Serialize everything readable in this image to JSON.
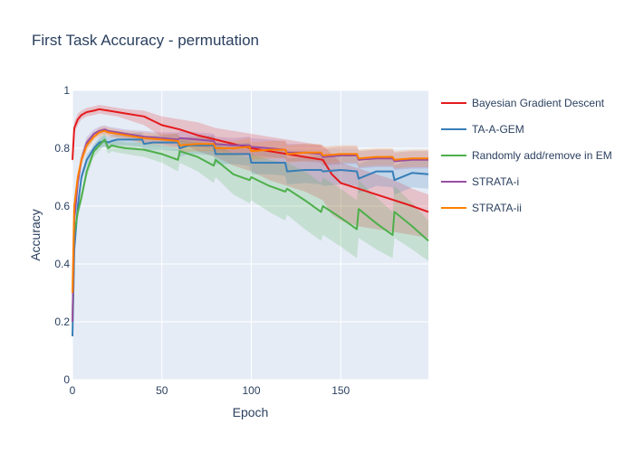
{
  "chart_data": {
    "type": "line",
    "title": "First Task Accuracy - permutation",
    "xlabel": "Epoch",
    "ylabel": "Accuracy",
    "xlim": [
      0,
      199
    ],
    "ylim": [
      0,
      1
    ],
    "x_ticks": [
      0,
      50,
      100,
      150
    ],
    "y_ticks": [
      0,
      0.2,
      0.4,
      0.6,
      0.8,
      1
    ],
    "y_tick_labels": [
      "0",
      "0.2",
      "0.4",
      "0.6",
      "0.8",
      "1"
    ],
    "grid": true,
    "legend_position": "right",
    "background_color": "#e5ecf6",
    "series": [
      {
        "name": "Bayesian Gradient Descent",
        "color": "#e41a1c",
        "x": [
          0,
          1,
          3,
          5,
          8,
          12,
          15,
          20,
          25,
          30,
          40,
          45,
          50,
          60,
          70,
          80,
          90,
          100,
          110,
          120,
          130,
          140,
          145,
          150,
          160,
          170,
          180,
          190,
          199
        ],
        "y": [
          0.76,
          0.87,
          0.9,
          0.915,
          0.925,
          0.93,
          0.935,
          0.93,
          0.925,
          0.92,
          0.91,
          0.895,
          0.88,
          0.865,
          0.845,
          0.83,
          0.815,
          0.8,
          0.79,
          0.78,
          0.77,
          0.76,
          0.71,
          0.68,
          0.66,
          0.64,
          0.62,
          0.6,
          0.58
        ],
        "lower": [
          0.74,
          0.85,
          0.88,
          0.9,
          0.91,
          0.915,
          0.92,
          0.915,
          0.91,
          0.9,
          0.88,
          0.86,
          0.84,
          0.82,
          0.79,
          0.77,
          0.74,
          0.72,
          0.69,
          0.67,
          0.65,
          0.62,
          0.57,
          0.55,
          0.53,
          0.52,
          0.51,
          0.5,
          0.49
        ],
        "upper": [
          0.78,
          0.89,
          0.92,
          0.93,
          0.94,
          0.945,
          0.95,
          0.945,
          0.94,
          0.935,
          0.93,
          0.92,
          0.91,
          0.9,
          0.89,
          0.87,
          0.86,
          0.85,
          0.84,
          0.83,
          0.82,
          0.81,
          0.78,
          0.75,
          0.73,
          0.71,
          0.69,
          0.66,
          0.64
        ]
      },
      {
        "name": "TA-A-GEM",
        "color": "#377eb8",
        "x": [
          0,
          1,
          3,
          5,
          8,
          12,
          15,
          18,
          20,
          22,
          25,
          30,
          39,
          40,
          45,
          50,
          59,
          60,
          65,
          70,
          79,
          80,
          90,
          99,
          100,
          110,
          119,
          120,
          130,
          139,
          140,
          150,
          159,
          160,
          170,
          179,
          180,
          190,
          199
        ],
        "y": [
          0.15,
          0.45,
          0.6,
          0.7,
          0.76,
          0.8,
          0.82,
          0.825,
          0.82,
          0.825,
          0.83,
          0.83,
          0.83,
          0.815,
          0.82,
          0.82,
          0.82,
          0.8,
          0.81,
          0.81,
          0.81,
          0.78,
          0.78,
          0.78,
          0.75,
          0.75,
          0.75,
          0.72,
          0.725,
          0.725,
          0.72,
          0.725,
          0.72,
          0.695,
          0.72,
          0.72,
          0.69,
          0.715,
          0.71
        ],
        "lower": [
          0.13,
          0.43,
          0.58,
          0.68,
          0.74,
          0.785,
          0.8,
          0.805,
          0.8,
          0.805,
          0.81,
          0.81,
          0.805,
          0.79,
          0.795,
          0.795,
          0.79,
          0.77,
          0.78,
          0.78,
          0.775,
          0.745,
          0.745,
          0.74,
          0.71,
          0.71,
          0.705,
          0.675,
          0.68,
          0.675,
          0.67,
          0.675,
          0.67,
          0.645,
          0.67,
          0.665,
          0.64,
          0.665,
          0.66
        ],
        "upper": [
          0.17,
          0.47,
          0.62,
          0.72,
          0.78,
          0.815,
          0.84,
          0.845,
          0.84,
          0.845,
          0.85,
          0.85,
          0.855,
          0.84,
          0.845,
          0.845,
          0.85,
          0.83,
          0.84,
          0.84,
          0.845,
          0.815,
          0.815,
          0.82,
          0.79,
          0.79,
          0.795,
          0.765,
          0.77,
          0.775,
          0.77,
          0.775,
          0.77,
          0.745,
          0.77,
          0.775,
          0.74,
          0.765,
          0.76
        ]
      },
      {
        "name": "Randomly add/remove in EM",
        "color": "#4daf4a",
        "x": [
          0,
          1,
          3,
          5,
          8,
          12,
          15,
          18,
          20,
          22,
          25,
          30,
          40,
          50,
          59,
          60,
          70,
          79,
          80,
          90,
          99,
          100,
          110,
          119,
          120,
          130,
          139,
          140,
          150,
          159,
          160,
          170,
          179,
          180,
          190,
          199
        ],
        "y": [
          0.2,
          0.5,
          0.58,
          0.63,
          0.72,
          0.79,
          0.81,
          0.83,
          0.8,
          0.81,
          0.805,
          0.8,
          0.795,
          0.78,
          0.76,
          0.79,
          0.77,
          0.74,
          0.76,
          0.71,
          0.69,
          0.7,
          0.67,
          0.65,
          0.66,
          0.62,
          0.58,
          0.6,
          0.56,
          0.52,
          0.59,
          0.54,
          0.5,
          0.58,
          0.53,
          0.48
        ],
        "lower": [
          0.18,
          0.48,
          0.56,
          0.61,
          0.7,
          0.77,
          0.79,
          0.81,
          0.78,
          0.79,
          0.785,
          0.78,
          0.77,
          0.75,
          0.72,
          0.75,
          0.72,
          0.68,
          0.7,
          0.64,
          0.61,
          0.62,
          0.58,
          0.55,
          0.57,
          0.52,
          0.48,
          0.5,
          0.46,
          0.42,
          0.49,
          0.45,
          0.42,
          0.49,
          0.45,
          0.41
        ],
        "upper": [
          0.22,
          0.52,
          0.6,
          0.65,
          0.74,
          0.81,
          0.83,
          0.85,
          0.82,
          0.83,
          0.825,
          0.82,
          0.82,
          0.81,
          0.8,
          0.83,
          0.82,
          0.8,
          0.82,
          0.78,
          0.77,
          0.78,
          0.76,
          0.75,
          0.75,
          0.72,
          0.68,
          0.7,
          0.66,
          0.62,
          0.69,
          0.63,
          0.58,
          0.67,
          0.61,
          0.55
        ]
      },
      {
        "name": "STRATA-i",
        "color": "#984ea3",
        "x": [
          0,
          1,
          3,
          5,
          8,
          12,
          15,
          18,
          20,
          25,
          30,
          40,
          50,
          59,
          60,
          70,
          79,
          80,
          90,
          99,
          100,
          110,
          119,
          120,
          130,
          139,
          140,
          150,
          159,
          160,
          170,
          179,
          180,
          190,
          199
        ],
        "y": [
          0.2,
          0.55,
          0.68,
          0.76,
          0.82,
          0.85,
          0.86,
          0.865,
          0.86,
          0.855,
          0.85,
          0.84,
          0.835,
          0.83,
          0.835,
          0.83,
          0.825,
          0.815,
          0.81,
          0.81,
          0.805,
          0.8,
          0.795,
          0.785,
          0.785,
          0.78,
          0.77,
          0.775,
          0.775,
          0.76,
          0.765,
          0.765,
          0.755,
          0.76,
          0.76
        ],
        "lower": [
          0.18,
          0.53,
          0.66,
          0.74,
          0.8,
          0.835,
          0.845,
          0.85,
          0.845,
          0.84,
          0.835,
          0.82,
          0.815,
          0.805,
          0.81,
          0.805,
          0.8,
          0.79,
          0.785,
          0.78,
          0.775,
          0.77,
          0.765,
          0.755,
          0.755,
          0.75,
          0.74,
          0.745,
          0.745,
          0.73,
          0.735,
          0.735,
          0.725,
          0.73,
          0.73
        ],
        "upper": [
          0.22,
          0.57,
          0.7,
          0.78,
          0.84,
          0.865,
          0.875,
          0.88,
          0.875,
          0.87,
          0.865,
          0.86,
          0.855,
          0.855,
          0.86,
          0.855,
          0.85,
          0.84,
          0.835,
          0.84,
          0.835,
          0.83,
          0.825,
          0.815,
          0.815,
          0.81,
          0.8,
          0.805,
          0.805,
          0.79,
          0.795,
          0.795,
          0.785,
          0.79,
          0.79
        ]
      },
      {
        "name": "STRATA-ii",
        "color": "#ff7f00",
        "x": [
          0,
          1,
          3,
          5,
          8,
          12,
          15,
          18,
          20,
          25,
          30,
          40,
          50,
          59,
          60,
          70,
          79,
          80,
          90,
          99,
          100,
          110,
          119,
          120,
          130,
          139,
          140,
          150,
          159,
          160,
          170,
          179,
          180,
          190,
          199
        ],
        "y": [
          0.3,
          0.6,
          0.7,
          0.76,
          0.81,
          0.84,
          0.855,
          0.86,
          0.855,
          0.85,
          0.845,
          0.835,
          0.83,
          0.825,
          0.81,
          0.815,
          0.815,
          0.8,
          0.8,
          0.805,
          0.79,
          0.795,
          0.795,
          0.78,
          0.785,
          0.785,
          0.775,
          0.78,
          0.78,
          0.765,
          0.77,
          0.77,
          0.76,
          0.765,
          0.765
        ],
        "lower": [
          0.28,
          0.58,
          0.68,
          0.74,
          0.79,
          0.825,
          0.84,
          0.845,
          0.84,
          0.835,
          0.83,
          0.815,
          0.81,
          0.8,
          0.785,
          0.79,
          0.79,
          0.775,
          0.775,
          0.775,
          0.76,
          0.765,
          0.765,
          0.75,
          0.755,
          0.755,
          0.745,
          0.75,
          0.75,
          0.735,
          0.74,
          0.74,
          0.73,
          0.735,
          0.735
        ],
        "upper": [
          0.32,
          0.62,
          0.72,
          0.78,
          0.83,
          0.855,
          0.87,
          0.875,
          0.87,
          0.865,
          0.86,
          0.855,
          0.85,
          0.85,
          0.835,
          0.84,
          0.84,
          0.825,
          0.825,
          0.835,
          0.82,
          0.825,
          0.825,
          0.81,
          0.815,
          0.815,
          0.805,
          0.81,
          0.81,
          0.795,
          0.8,
          0.8,
          0.79,
          0.795,
          0.795
        ]
      }
    ]
  }
}
